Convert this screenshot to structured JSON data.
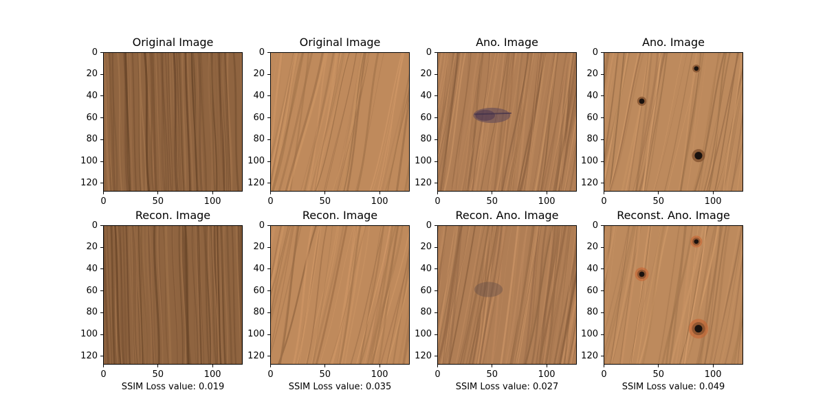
{
  "panels": [
    {
      "title": "Original Image",
      "texture": "dark",
      "defect": "none",
      "caption": ""
    },
    {
      "title": "Original Image",
      "texture": "light",
      "defect": "none",
      "caption": ""
    },
    {
      "title": "Ano. Image",
      "texture": "medium",
      "defect": "smudge",
      "caption": ""
    },
    {
      "title": "Ano. Image",
      "texture": "light2",
      "defect": "holes",
      "caption": ""
    },
    {
      "title": "Recon. Image",
      "texture": "dark",
      "defect": "none",
      "caption": "SSIM Loss value: 0.019"
    },
    {
      "title": "Recon. Image",
      "texture": "light",
      "defect": "none",
      "caption": "SSIM Loss value: 0.035"
    },
    {
      "title": "Recon. Ano. Image",
      "texture": "medium",
      "defect": "smudge",
      "caption": "SSIM Loss value: 0.027"
    },
    {
      "title": "Reconst. Ano. Image",
      "texture": "light2",
      "defect": "holes",
      "caption": "SSIM Loss value: 0.049"
    }
  ],
  "axes": {
    "y_ticks": [
      "0",
      "20",
      "40",
      "60",
      "80",
      "100",
      "120"
    ],
    "x_ticks": [
      "0",
      "50",
      "100"
    ]
  },
  "palette": {
    "dark": "#8f6440",
    "light": "#bf8a5c",
    "medium": "#b07e55",
    "light2": "#bd8a5d"
  }
}
